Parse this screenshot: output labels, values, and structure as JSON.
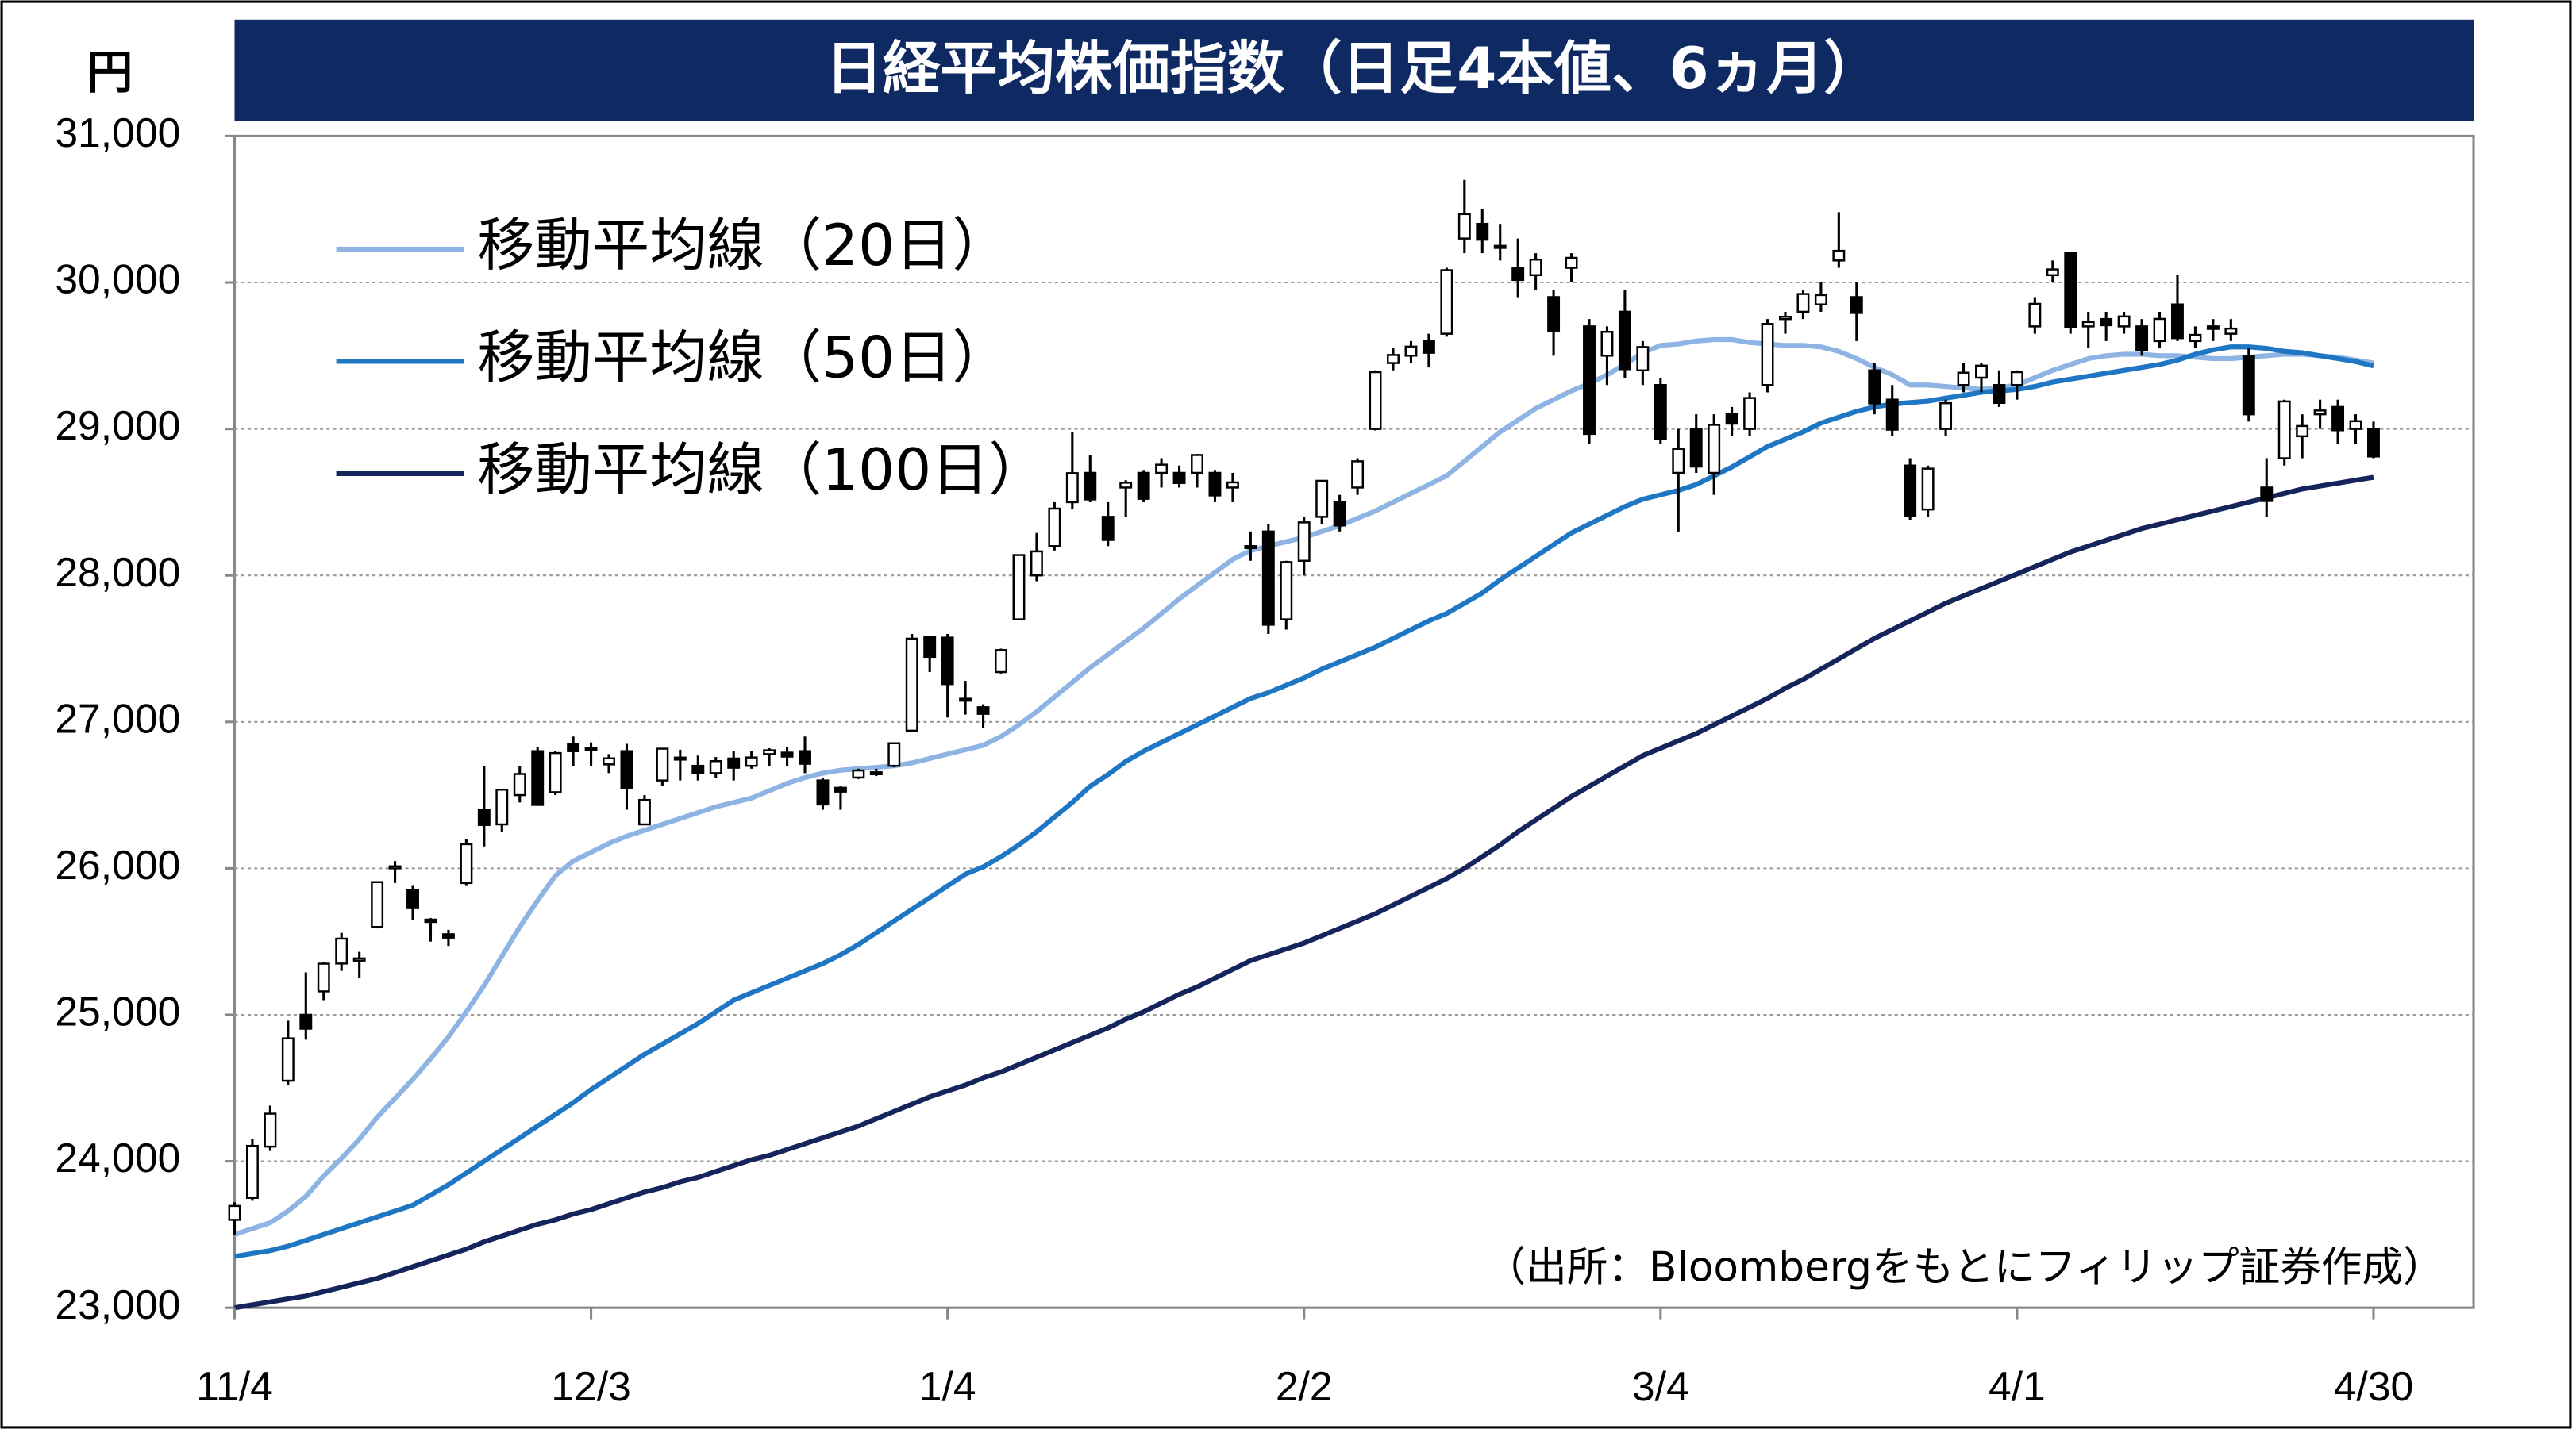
{
  "chart_data": {
    "type": "candlestick",
    "title": "日経平均株価指数（日足4本値、6ヵ月）",
    "unit_label": "円",
    "source": "（出所：Bloombergをもとにフィリップ証券作成）",
    "categories": [
      "11/4",
      null,
      null,
      null,
      null,
      null,
      null,
      null,
      null,
      null,
      null,
      null,
      null,
      null,
      null,
      null,
      null,
      null,
      null,
      null,
      "12/3",
      null,
      null,
      null,
      null,
      null,
      null,
      null,
      null,
      null,
      null,
      null,
      null,
      null,
      null,
      null,
      null,
      null,
      null,
      null,
      "1/4",
      null,
      null,
      null,
      null,
      null,
      null,
      null,
      null,
      null,
      null,
      null,
      null,
      null,
      null,
      null,
      null,
      null,
      null,
      null,
      "2/2",
      null,
      null,
      null,
      null,
      null,
      null,
      null,
      null,
      null,
      null,
      null,
      null,
      null,
      null,
      null,
      null,
      null,
      null,
      null,
      "3/4",
      null,
      null,
      null,
      null,
      null,
      null,
      null,
      null,
      null,
      null,
      null,
      null,
      null,
      null,
      null,
      null,
      null,
      null,
      null,
      "4/1",
      null,
      null,
      null,
      null,
      null,
      null,
      null,
      null,
      null,
      null,
      null,
      null,
      null,
      null,
      null,
      null,
      null,
      null,
      null,
      "4/30"
    ],
    "open": [
      23600,
      23750,
      24100,
      24550,
      25000,
      25160,
      25350,
      25370,
      25600,
      26000,
      25850,
      25650,
      25550,
      25900,
      26400,
      26300,
      26500,
      26800,
      26520,
      26850,
      26820,
      26710,
      26800,
      26300,
      26600,
      26750,
      26700,
      26650,
      26750,
      26700,
      26780,
      26790,
      26800,
      26600,
      26550,
      26620,
      26650,
      26700,
      26940,
      27580,
      27575,
      27150,
      27100,
      27340,
      27700,
      28000,
      28200,
      28500,
      28700,
      28400,
      28600,
      28700,
      28700,
      28700,
      28700,
      28700,
      28600,
      28200,
      28300,
      27700,
      28100,
      28400,
      28500,
      28600,
      29000,
      29450,
      29500,
      29600,
      29650,
      30300,
      30400,
      30250,
      30100,
      30050,
      29900,
      30100,
      29700,
      29500,
      29800,
      29400,
      29300,
      28700,
      29000,
      28700,
      29100,
      29000,
      29300,
      29750,
      29800,
      29850,
      30150,
      29900,
      29400,
      29200,
      28750,
      28450,
      29000,
      29300,
      29350,
      29300,
      29300,
      29700,
      30050,
      30200,
      29700,
      29750,
      29700,
      29700,
      29600,
      29850,
      29600,
      29700,
      29650,
      29500,
      28600,
      28800,
      28950,
      29100,
      29150,
      29000,
      29000
    ],
    "high": [
      23720,
      24150,
      24380,
      24960,
      25290,
      25360,
      25560,
      25430,
      25910,
      26050,
      25880,
      25660,
      25580,
      26200,
      26700,
      26540,
      26700,
      26830,
      26800,
      26900,
      26860,
      26780,
      26850,
      26500,
      26820,
      26810,
      26770,
      26760,
      26800,
      26800,
      26820,
      26830,
      26900,
      26620,
      26560,
      26680,
      26680,
      26860,
      27600,
      27580,
      27600,
      27280,
      27120,
      27500,
      28140,
      28290,
      28500,
      28980,
      28820,
      28500,
      28650,
      28720,
      28800,
      28750,
      28830,
      28720,
      28700,
      28300,
      28350,
      28100,
      28400,
      28650,
      28550,
      28800,
      29400,
      29550,
      29600,
      29650,
      30100,
      30700,
      30500,
      30400,
      30300,
      30200,
      29950,
      30200,
      29750,
      29700,
      29950,
      29600,
      29350,
      29000,
      29100,
      29100,
      29150,
      29250,
      29750,
      29800,
      29950,
      30000,
      30480,
      30000,
      29450,
      29300,
      28800,
      28750,
      29200,
      29450,
      29450,
      29400,
      29400,
      29900,
      30150,
      30200,
      29800,
      29800,
      29800,
      29750,
      29800,
      30050,
      29700,
      29750,
      29750,
      29550,
      28800,
      29200,
      29100,
      29200,
      29200,
      29100,
      29050
    ],
    "low": [
      23500,
      23730,
      24070,
      24520,
      24830,
      25100,
      25300,
      25250,
      25590,
      25900,
      25650,
      25500,
      25470,
      25880,
      26150,
      26250,
      26450,
      26430,
      26500,
      26700,
      26700,
      26650,
      26400,
      26300,
      26560,
      26600,
      26600,
      26620,
      26600,
      26680,
      26700,
      26700,
      26650,
      26400,
      26400,
      26610,
      26630,
      26690,
      26930,
      27340,
      27030,
      27050,
      26960,
      27330,
      27700,
      27960,
      28170,
      28450,
      28500,
      28200,
      28400,
      28500,
      28600,
      28600,
      28600,
      28500,
      28500,
      28100,
      27600,
      27630,
      28000,
      28350,
      28300,
      28550,
      28990,
      29400,
      29450,
      29420,
      29630,
      30200,
      30200,
      30150,
      29900,
      29950,
      29500,
      30000,
      28900,
      29300,
      29350,
      29300,
      28900,
      28300,
      28700,
      28550,
      28950,
      28950,
      29250,
      29650,
      29750,
      29800,
      30100,
      29600,
      29100,
      28950,
      28380,
      28400,
      28950,
      29250,
      29250,
      29150,
      29200,
      29650,
      30000,
      29650,
      29550,
      29600,
      29650,
      29500,
      29550,
      29600,
      29550,
      29600,
      29600,
      29050,
      28400,
      28750,
      28800,
      29000,
      28900,
      28900,
      28800
    ],
    "close": [
      23695,
      24105,
      24325,
      24839,
      24905,
      25349,
      25520,
      25385,
      25906,
      26014,
      25728,
      25634,
      25527,
      26165,
      26296,
      26537,
      26644,
      26433,
      26787,
      26800,
      26809,
      26751,
      26547,
      26467,
      26817,
      26756,
      26652,
      26732,
      26687,
      26757,
      26806,
      26763,
      26714,
      26436,
      26524,
      26668,
      26656,
      26854,
      27568,
      27444,
      27258,
      27158,
      27055,
      27490,
      28139,
      28164,
      28456,
      28698,
      28519,
      28242,
      28633,
      28523,
      28756,
      28631,
      28822,
      28546,
      28635,
      28197,
      27663,
      28091,
      28362,
      28646,
      28341,
      28779,
      29388,
      29505,
      29562,
      29520,
      30084,
      30467,
      30292,
      30236,
      30017,
      30156,
      29671,
      30168,
      28966,
      29663,
      29408,
      29559,
      28930,
      28864,
      28743,
      29028,
      29036,
      29211,
      29717,
      29766,
      29921,
      29914,
      30216,
      29792,
      29174,
      28995,
      28405,
      28729,
      29176,
      29384,
      29432,
      29178,
      29388,
      29854,
      30089,
      29696,
      29730,
      29708,
      29768,
      29538,
      29751,
      29620,
      29642,
      29683,
      29685,
      29100,
      28508,
      29188,
      29020,
      29126,
      28991,
      29053,
      28812
    ],
    "up_color": "#ffffff",
    "down_color": "#000000",
    "series": [
      {
        "name": "移動平均線（20日）",
        "color": "#8db4e2",
        "values": [
          23500,
          23540,
          23580,
          23660,
          23760,
          23900,
          24020,
          24150,
          24300,
          24430,
          24560,
          24700,
          24850,
          25020,
          25200,
          25400,
          25600,
          25780,
          25950,
          26050,
          26110,
          26170,
          26220,
          26260,
          26300,
          26340,
          26380,
          26420,
          26450,
          26480,
          26530,
          26580,
          26620,
          26650,
          26670,
          26680,
          26690,
          26700,
          26720,
          26750,
          26780,
          26810,
          26840,
          26900,
          26980,
          27070,
          27170,
          27270,
          27370,
          27460,
          27550,
          27640,
          27740,
          27840,
          27930,
          28020,
          28110,
          28170,
          28200,
          28230,
          28260,
          28300,
          28340,
          28390,
          28440,
          28500,
          28560,
          28620,
          28680,
          28780,
          28880,
          28980,
          29060,
          29140,
          29200,
          29260,
          29310,
          29370,
          29440,
          29520,
          29570,
          29580,
          29600,
          29610,
          29610,
          29590,
          29580,
          29570,
          29570,
          29560,
          29530,
          29480,
          29420,
          29370,
          29300,
          29300,
          29290,
          29280,
          29270,
          29280,
          29300,
          29350,
          29400,
          29440,
          29480,
          29500,
          29510,
          29510,
          29500,
          29500,
          29490,
          29480,
          29480,
          29490,
          29500,
          29510,
          29510,
          29500,
          29490,
          29470,
          29450
        ]
      },
      {
        "name": "移動平均線（50日）",
        "color": "#1f77c4",
        "values": [
          23350,
          23370,
          23390,
          23420,
          23460,
          23500,
          23540,
          23580,
          23620,
          23660,
          23700,
          23770,
          23840,
          23920,
          24000,
          24080,
          24160,
          24240,
          24320,
          24400,
          24490,
          24570,
          24650,
          24730,
          24800,
          24870,
          24940,
          25020,
          25100,
          25150,
          25200,
          25250,
          25300,
          25350,
          25410,
          25480,
          25560,
          25640,
          25720,
          25800,
          25880,
          25960,
          26010,
          26080,
          26160,
          26250,
          26350,
          26450,
          26560,
          26640,
          26730,
          26800,
          26860,
          26920,
          26980,
          27040,
          27100,
          27160,
          27200,
          27250,
          27300,
          27360,
          27410,
          27460,
          27510,
          27570,
          27630,
          27690,
          27740,
          27810,
          27880,
          27970,
          28050,
          28130,
          28210,
          28290,
          28350,
          28410,
          28470,
          28520,
          28550,
          28580,
          28620,
          28680,
          28740,
          28810,
          28880,
          28930,
          28980,
          29040,
          29080,
          29120,
          29150,
          29170,
          29180,
          29190,
          29210,
          29230,
          29250,
          29260,
          29270,
          29290,
          29320,
          29340,
          29360,
          29380,
          29400,
          29420,
          29440,
          29470,
          29510,
          29540,
          29560,
          29560,
          29550,
          29530,
          29520,
          29500,
          29480,
          29460,
          29430
        ]
      },
      {
        "name": "移動平均線（100日）",
        "color": "#15245a",
        "values": [
          23000,
          23020,
          23040,
          23060,
          23080,
          23110,
          23140,
          23170,
          23200,
          23240,
          23280,
          23320,
          23360,
          23400,
          23450,
          23490,
          23530,
          23570,
          23600,
          23640,
          23670,
          23710,
          23750,
          23790,
          23820,
          23860,
          23890,
          23930,
          23970,
          24010,
          24040,
          24080,
          24120,
          24160,
          24200,
          24240,
          24290,
          24340,
          24390,
          24440,
          24480,
          24520,
          24570,
          24610,
          24660,
          24710,
          24760,
          24810,
          24860,
          24910,
          24970,
          25020,
          25080,
          25140,
          25190,
          25250,
          25310,
          25370,
          25410,
          25450,
          25490,
          25540,
          25590,
          25640,
          25690,
          25750,
          25810,
          25870,
          25930,
          26000,
          26080,
          26160,
          26250,
          26330,
          26410,
          26490,
          26560,
          26630,
          26700,
          26770,
          26820,
          26870,
          26920,
          26980,
          27040,
          27100,
          27160,
          27230,
          27290,
          27360,
          27430,
          27500,
          27570,
          27630,
          27690,
          27750,
          27810,
          27860,
          27910,
          27960,
          28010,
          28060,
          28110,
          28160,
          28200,
          28240,
          28280,
          28320,
          28350,
          28380,
          28410,
          28440,
          28470,
          28500,
          28530,
          28560,
          28590,
          28610,
          28630,
          28650,
          28670
        ]
      }
    ],
    "ylim": [
      23000,
      31000
    ],
    "yticks": [
      {
        "value": 23000,
        "label": "23,000"
      },
      {
        "value": 24000,
        "label": "24,000"
      },
      {
        "value": 25000,
        "label": "25,000"
      },
      {
        "value": 26000,
        "label": "26,000"
      },
      {
        "value": 27000,
        "label": "27,000"
      },
      {
        "value": 28000,
        "label": "28,000"
      },
      {
        "value": 29000,
        "label": "29,000"
      },
      {
        "value": 30000,
        "label": "30,000"
      },
      {
        "value": 31000,
        "label": "31,000"
      }
    ],
    "grid": true,
    "legend": "upper left"
  }
}
